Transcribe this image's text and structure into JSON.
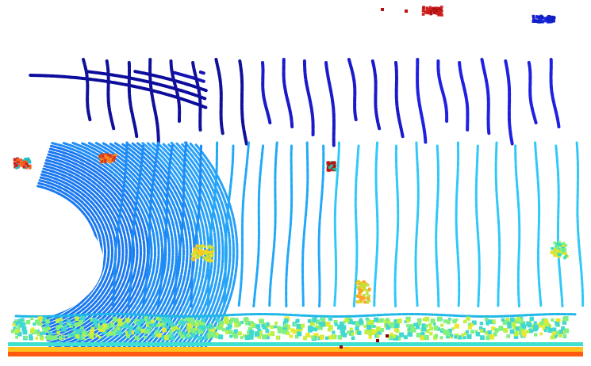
{
  "image": {
    "kind": "lidar-point-cloud",
    "view": "top-down",
    "background": "#ffffff",
    "colormap": [
      "#00008b",
      "#0000ff",
      "#0080ff",
      "#00c0ff",
      "#00ffff",
      "#80ff80",
      "#ffff00",
      "#ff8000",
      "#ff0000",
      "#8b0000"
    ]
  }
}
